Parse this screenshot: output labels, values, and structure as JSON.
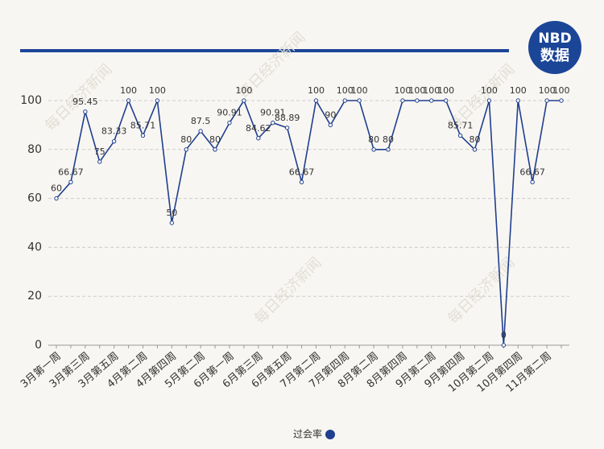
{
  "logo": {
    "line1": "NBD",
    "line2": "数据"
  },
  "watermark": "每日经济新闻",
  "chart_data": {
    "type": "line",
    "categories": [
      "3月第一周",
      null,
      "3月第三周",
      null,
      "3月第五周",
      null,
      "4月第二周",
      null,
      "4月第四周",
      null,
      "5月第二周",
      null,
      "6月第一周",
      null,
      "6月第三周",
      null,
      "6月第五周",
      null,
      "7月第二周",
      null,
      "7月第四周",
      null,
      "8月第二周",
      null,
      "8月第四周",
      null,
      "9月第二周",
      null,
      "9月第四周",
      null,
      "10月第二周",
      null,
      "10月第四周",
      null,
      "11月第二周",
      null
    ],
    "series": [
      {
        "name": "过会率",
        "color": "#1f3f8f",
        "values": [
          60,
          66.67,
          95.45,
          75,
          83.33,
          100,
          85.71,
          100,
          50,
          80,
          87.5,
          80,
          90.91,
          100,
          84.62,
          90.91,
          88.89,
          66.67,
          100,
          90,
          100,
          100,
          80,
          80,
          100,
          100,
          100,
          100,
          85.71,
          80,
          100,
          0,
          100,
          66.67,
          100,
          100
        ]
      }
    ],
    "ylim": [
      0,
      100
    ],
    "yticks": [
      0,
      20,
      40,
      60,
      80,
      100
    ],
    "grid": true,
    "legend": "bottom"
  }
}
